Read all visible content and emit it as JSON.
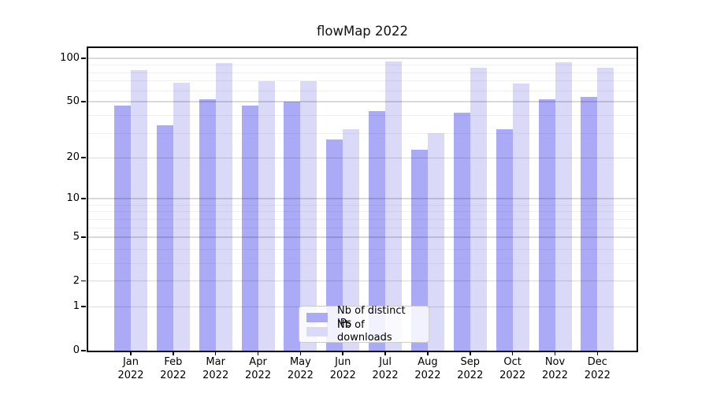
{
  "title": "flowMap 2022",
  "chart_data": {
    "type": "bar",
    "title": "flowMap 2022",
    "categories": [
      "Jan",
      "Feb",
      "Mar",
      "Apr",
      "May",
      "Jun",
      "Jul",
      "Aug",
      "Sep",
      "Oct",
      "Nov",
      "Dec"
    ],
    "category_year": "2022",
    "series": [
      {
        "name": "Nb of distinct IPs",
        "color": "#aaaaf7",
        "values": [
          47,
          34,
          52,
          47,
          50,
          27,
          43,
          23,
          42,
          32,
          52,
          54
        ]
      },
      {
        "name": "Nb of downloads",
        "color": "#dadaf8",
        "values": [
          83,
          68,
          93,
          69,
          69,
          32,
          95,
          30,
          86,
          67,
          94,
          86
        ]
      }
    ],
    "y_axis": {
      "scale": "symlog",
      "ticks": [
        0,
        1,
        2,
        5,
        10,
        20,
        50,
        100
      ],
      "minor_gridlines": [
        3,
        4,
        6,
        7,
        8,
        9,
        30,
        40,
        60,
        70,
        80,
        90
      ],
      "max": 100
    },
    "legend": {
      "position": "lower center"
    },
    "grid": true
  }
}
